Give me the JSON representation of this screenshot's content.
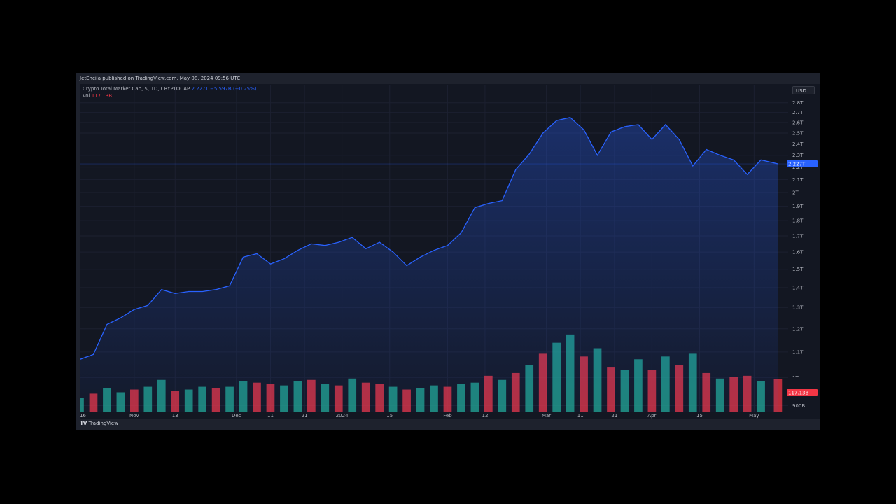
{
  "publisher_line": "JetEncila published on TradingView.com, May 08, 2024 09:56 UTC",
  "legend": {
    "symbol": "Crypto Total Market Cap, $, 1D, CRYPTOCAP",
    "value": "2.227T",
    "change": "−5.597B (−0.25%)",
    "vol_label": "Vol",
    "vol_value": "117.13B"
  },
  "currency_button": "USD",
  "footer_brand": "TradingView",
  "logo_icon": "tradingview-logo-icon",
  "colors": {
    "line": "#2962ff",
    "up": "#22ab94",
    "down": "#f23645",
    "price_badge": "#2962ff",
    "vol_badge": "#f23645"
  },
  "chart_data": [
    {
      "type": "area",
      "title": "",
      "y_unit": "T",
      "y_scale": "log",
      "ylim": [
        0.88,
        2.85
      ],
      "y_tick_labels": [
        "2.8T",
        "2.7T",
        "2.6T",
        "2.5T",
        "2.4T",
        "2.3T",
        "2.2T",
        "2.1T",
        "2T",
        "1.9T",
        "1.8T",
        "1.7T",
        "1.6T",
        "1.5T",
        "1.4T",
        "1.3T",
        "1.2T",
        "1.1T",
        "1T",
        "900B"
      ],
      "x_tick_labels": [
        "16",
        "Nov",
        "13",
        "Dec",
        "11",
        "21",
        "2024",
        "15",
        "Feb",
        "12",
        "Mar",
        "11",
        "21",
        "Apr",
        "15",
        "May"
      ],
      "last_value_label": "2.227T",
      "x": [
        "2023-10-16",
        "2023-10-20",
        "2023-10-24",
        "2023-10-28",
        "2023-11-01",
        "2023-11-05",
        "2023-11-09",
        "2023-11-13",
        "2023-11-17",
        "2023-11-21",
        "2023-11-25",
        "2023-11-29",
        "2023-12-03",
        "2023-12-07",
        "2023-12-11",
        "2023-12-15",
        "2023-12-19",
        "2023-12-23",
        "2023-12-27",
        "2023-12-31",
        "2024-01-04",
        "2024-01-08",
        "2024-01-12",
        "2024-01-16",
        "2024-01-20",
        "2024-01-24",
        "2024-01-28",
        "2024-02-01",
        "2024-02-05",
        "2024-02-09",
        "2024-02-13",
        "2024-02-17",
        "2024-02-21",
        "2024-02-25",
        "2024-02-29",
        "2024-03-04",
        "2024-03-08",
        "2024-03-12",
        "2024-03-16",
        "2024-03-20",
        "2024-03-24",
        "2024-03-28",
        "2024-04-01",
        "2024-04-05",
        "2024-04-09",
        "2024-04-13",
        "2024-04-17",
        "2024-04-21",
        "2024-04-25",
        "2024-04-29",
        "2024-05-03",
        "2024-05-08"
      ],
      "series": [
        {
          "values": [
            1.07,
            1.09,
            1.22,
            1.25,
            1.29,
            1.31,
            1.39,
            1.37,
            1.38,
            1.38,
            1.39,
            1.41,
            1.57,
            1.59,
            1.53,
            1.56,
            1.61,
            1.65,
            1.64,
            1.66,
            1.69,
            1.62,
            1.66,
            1.6,
            1.52,
            1.57,
            1.61,
            1.64,
            1.72,
            1.89,
            1.92,
            1.94,
            2.18,
            2.31,
            2.5,
            2.62,
            2.65,
            2.53,
            2.3,
            2.51,
            2.56,
            2.58,
            2.44,
            2.58,
            2.44,
            2.21,
            2.35,
            2.3,
            2.26,
            2.14,
            2.26,
            2.227
          ]
        }
      ]
    },
    {
      "type": "bar",
      "title": "",
      "series_label": "Vol",
      "y_unit": "B",
      "last_value_label": "117.13B",
      "x": [
        "2023-10-16",
        "2023-10-20",
        "2023-10-24",
        "2023-10-28",
        "2023-11-01",
        "2023-11-05",
        "2023-11-09",
        "2023-11-13",
        "2023-11-17",
        "2023-11-21",
        "2023-11-25",
        "2023-11-29",
        "2023-12-03",
        "2023-12-07",
        "2023-12-11",
        "2023-12-15",
        "2023-12-19",
        "2023-12-23",
        "2023-12-27",
        "2023-12-31",
        "2024-01-04",
        "2024-01-08",
        "2024-01-12",
        "2024-01-16",
        "2024-01-20",
        "2024-01-24",
        "2024-01-28",
        "2024-02-01",
        "2024-02-05",
        "2024-02-09",
        "2024-02-13",
        "2024-02-17",
        "2024-02-21",
        "2024-02-25",
        "2024-02-29",
        "2024-03-04",
        "2024-03-08",
        "2024-03-12",
        "2024-03-16",
        "2024-03-20",
        "2024-03-24",
        "2024-03-28",
        "2024-04-01",
        "2024-04-05",
        "2024-04-09",
        "2024-04-13",
        "2024-04-17",
        "2024-04-21",
        "2024-04-25",
        "2024-04-29",
        "2024-05-03",
        "2024-05-08"
      ],
      "values": [
        50,
        65,
        85,
        70,
        80,
        90,
        115,
        75,
        80,
        90,
        85,
        90,
        110,
        105,
        100,
        95,
        110,
        115,
        100,
        95,
        120,
        105,
        100,
        90,
        80,
        85,
        95,
        90,
        100,
        105,
        130,
        115,
        140,
        170,
        210,
        250,
        280,
        200,
        230,
        160,
        150,
        190,
        150,
        200,
        170,
        210,
        140,
        120,
        125,
        130,
        110,
        117
      ],
      "direction": [
        "up",
        "down",
        "up",
        "up",
        "down",
        "up",
        "up",
        "down",
        "up",
        "up",
        "down",
        "up",
        "up",
        "down",
        "down",
        "up",
        "up",
        "down",
        "up",
        "down",
        "up",
        "down",
        "down",
        "up",
        "down",
        "up",
        "up",
        "down",
        "up",
        "up",
        "down",
        "up",
        "down",
        "up",
        "down",
        "up",
        "up",
        "down",
        "up",
        "down",
        "up",
        "up",
        "down",
        "up",
        "down",
        "up",
        "down",
        "up",
        "down",
        "down",
        "up",
        "down"
      ]
    }
  ]
}
